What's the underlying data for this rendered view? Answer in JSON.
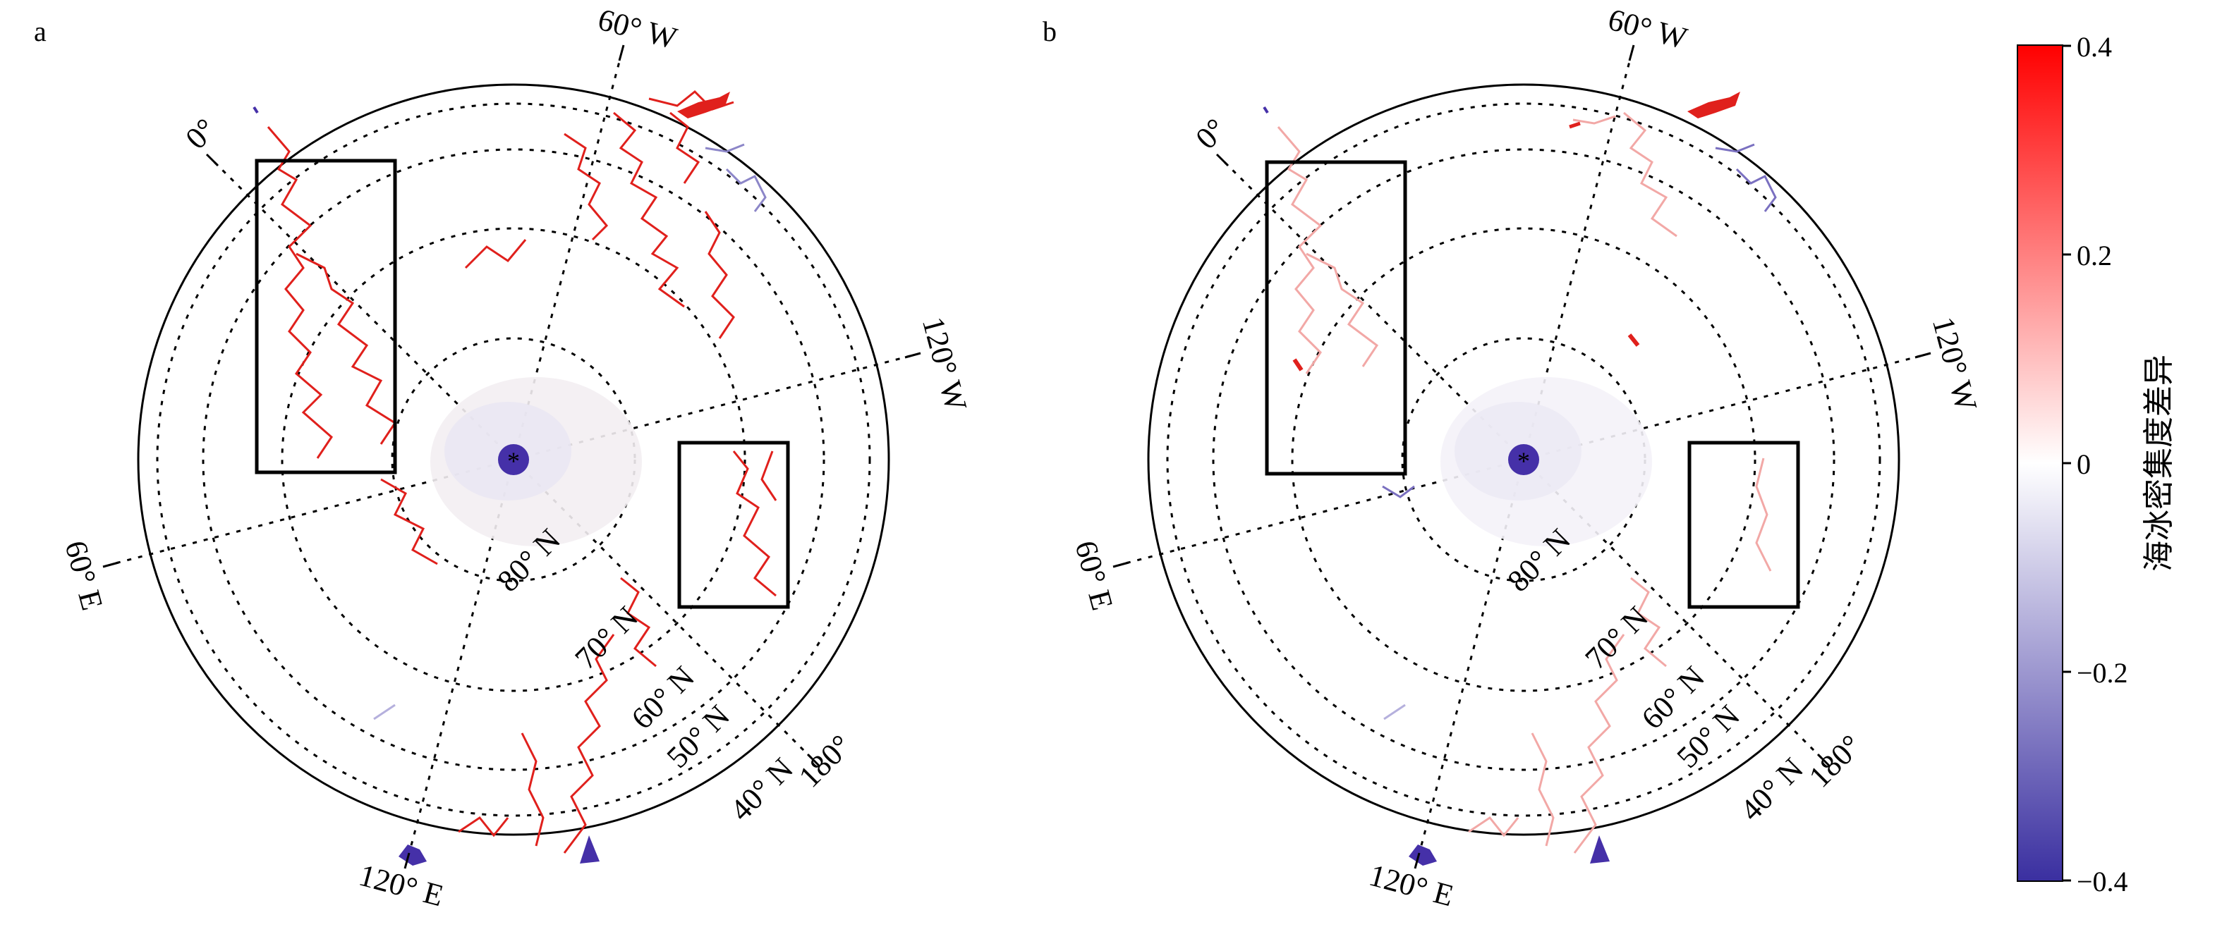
{
  "figure": {
    "panels": [
      {
        "letter": "a",
        "longitude_labels": [
          "0°",
          "60° W",
          "120° W",
          "180°",
          "120° E",
          "60° E"
        ],
        "latitude_labels": [
          "80° N",
          "70° N",
          "60° N",
          "50° N",
          "40° N"
        ]
      },
      {
        "letter": "b",
        "longitude_labels": [
          "0°",
          "60° W",
          "120° W",
          "180°",
          "120° E",
          "60° E"
        ],
        "latitude_labels": [
          "80° N",
          "70° N",
          "60° N",
          "50° N",
          "40° N"
        ]
      }
    ],
    "colorbar": {
      "title": "海冰密集度差异",
      "ticks": [
        "0.4",
        "0.2",
        "0",
        "−0.2",
        "−0.4"
      ],
      "range": [
        -0.4,
        0.4
      ],
      "colors": {
        "high": "#ff0000",
        "mid": "#ffffff",
        "low": "#3a2fa0"
      }
    },
    "colors": {
      "positive": "#e0201c",
      "negative": "#4a3cb0",
      "pole": "#4530a8"
    }
  }
}
